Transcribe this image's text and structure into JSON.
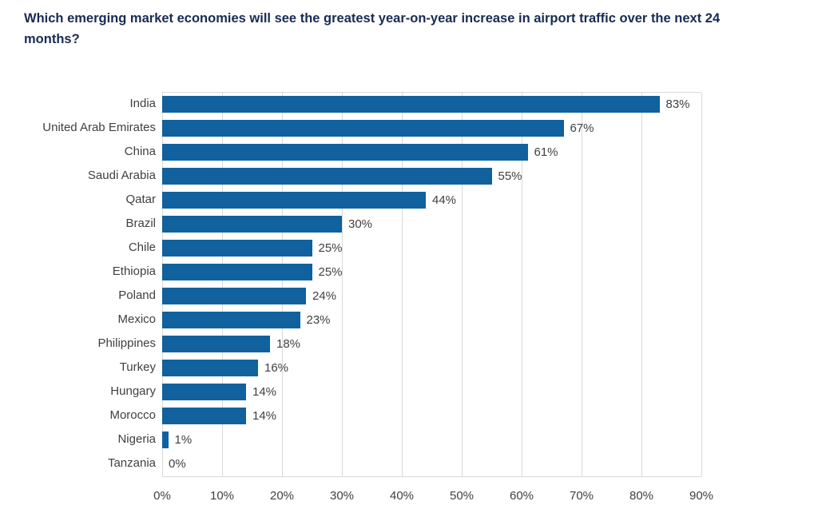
{
  "title": "Which emerging market economies will see the greatest year-on-year increase in airport traffic over the next 24 months?",
  "colors": {
    "bar": "#10619E",
    "title": "#182B52",
    "grid": "#D9D9D9",
    "label": "#404040"
  },
  "chart_data": {
    "type": "bar",
    "orientation": "horizontal",
    "title": "Which emerging market economies will see the greatest year-on-year increase in airport traffic over the next 24 months?",
    "categories": [
      "India",
      "United Arab Emirates",
      "China",
      "Saudi Arabia",
      "Qatar",
      "Brazil",
      "Chile",
      "Ethiopia",
      "Poland",
      "Mexico",
      "Philippines",
      "Turkey",
      "Hungary",
      "Morocco",
      "Nigeria",
      "Tanzania"
    ],
    "values": [
      83,
      67,
      61,
      55,
      44,
      30,
      25,
      25,
      24,
      23,
      18,
      16,
      14,
      14,
      1,
      0
    ],
    "value_labels": [
      "83%",
      "67%",
      "61%",
      "55%",
      "44%",
      "30%",
      "25%",
      "25%",
      "24%",
      "23%",
      "18%",
      "16%",
      "14%",
      "14%",
      "1%",
      "0%"
    ],
    "x_ticks": [
      "0%",
      "10%",
      "20%",
      "30%",
      "40%",
      "50%",
      "60%",
      "70%",
      "80%",
      "90%"
    ],
    "xlim": [
      0,
      90
    ],
    "xlabel": "",
    "ylabel": "",
    "grid": true,
    "legend": false
  }
}
